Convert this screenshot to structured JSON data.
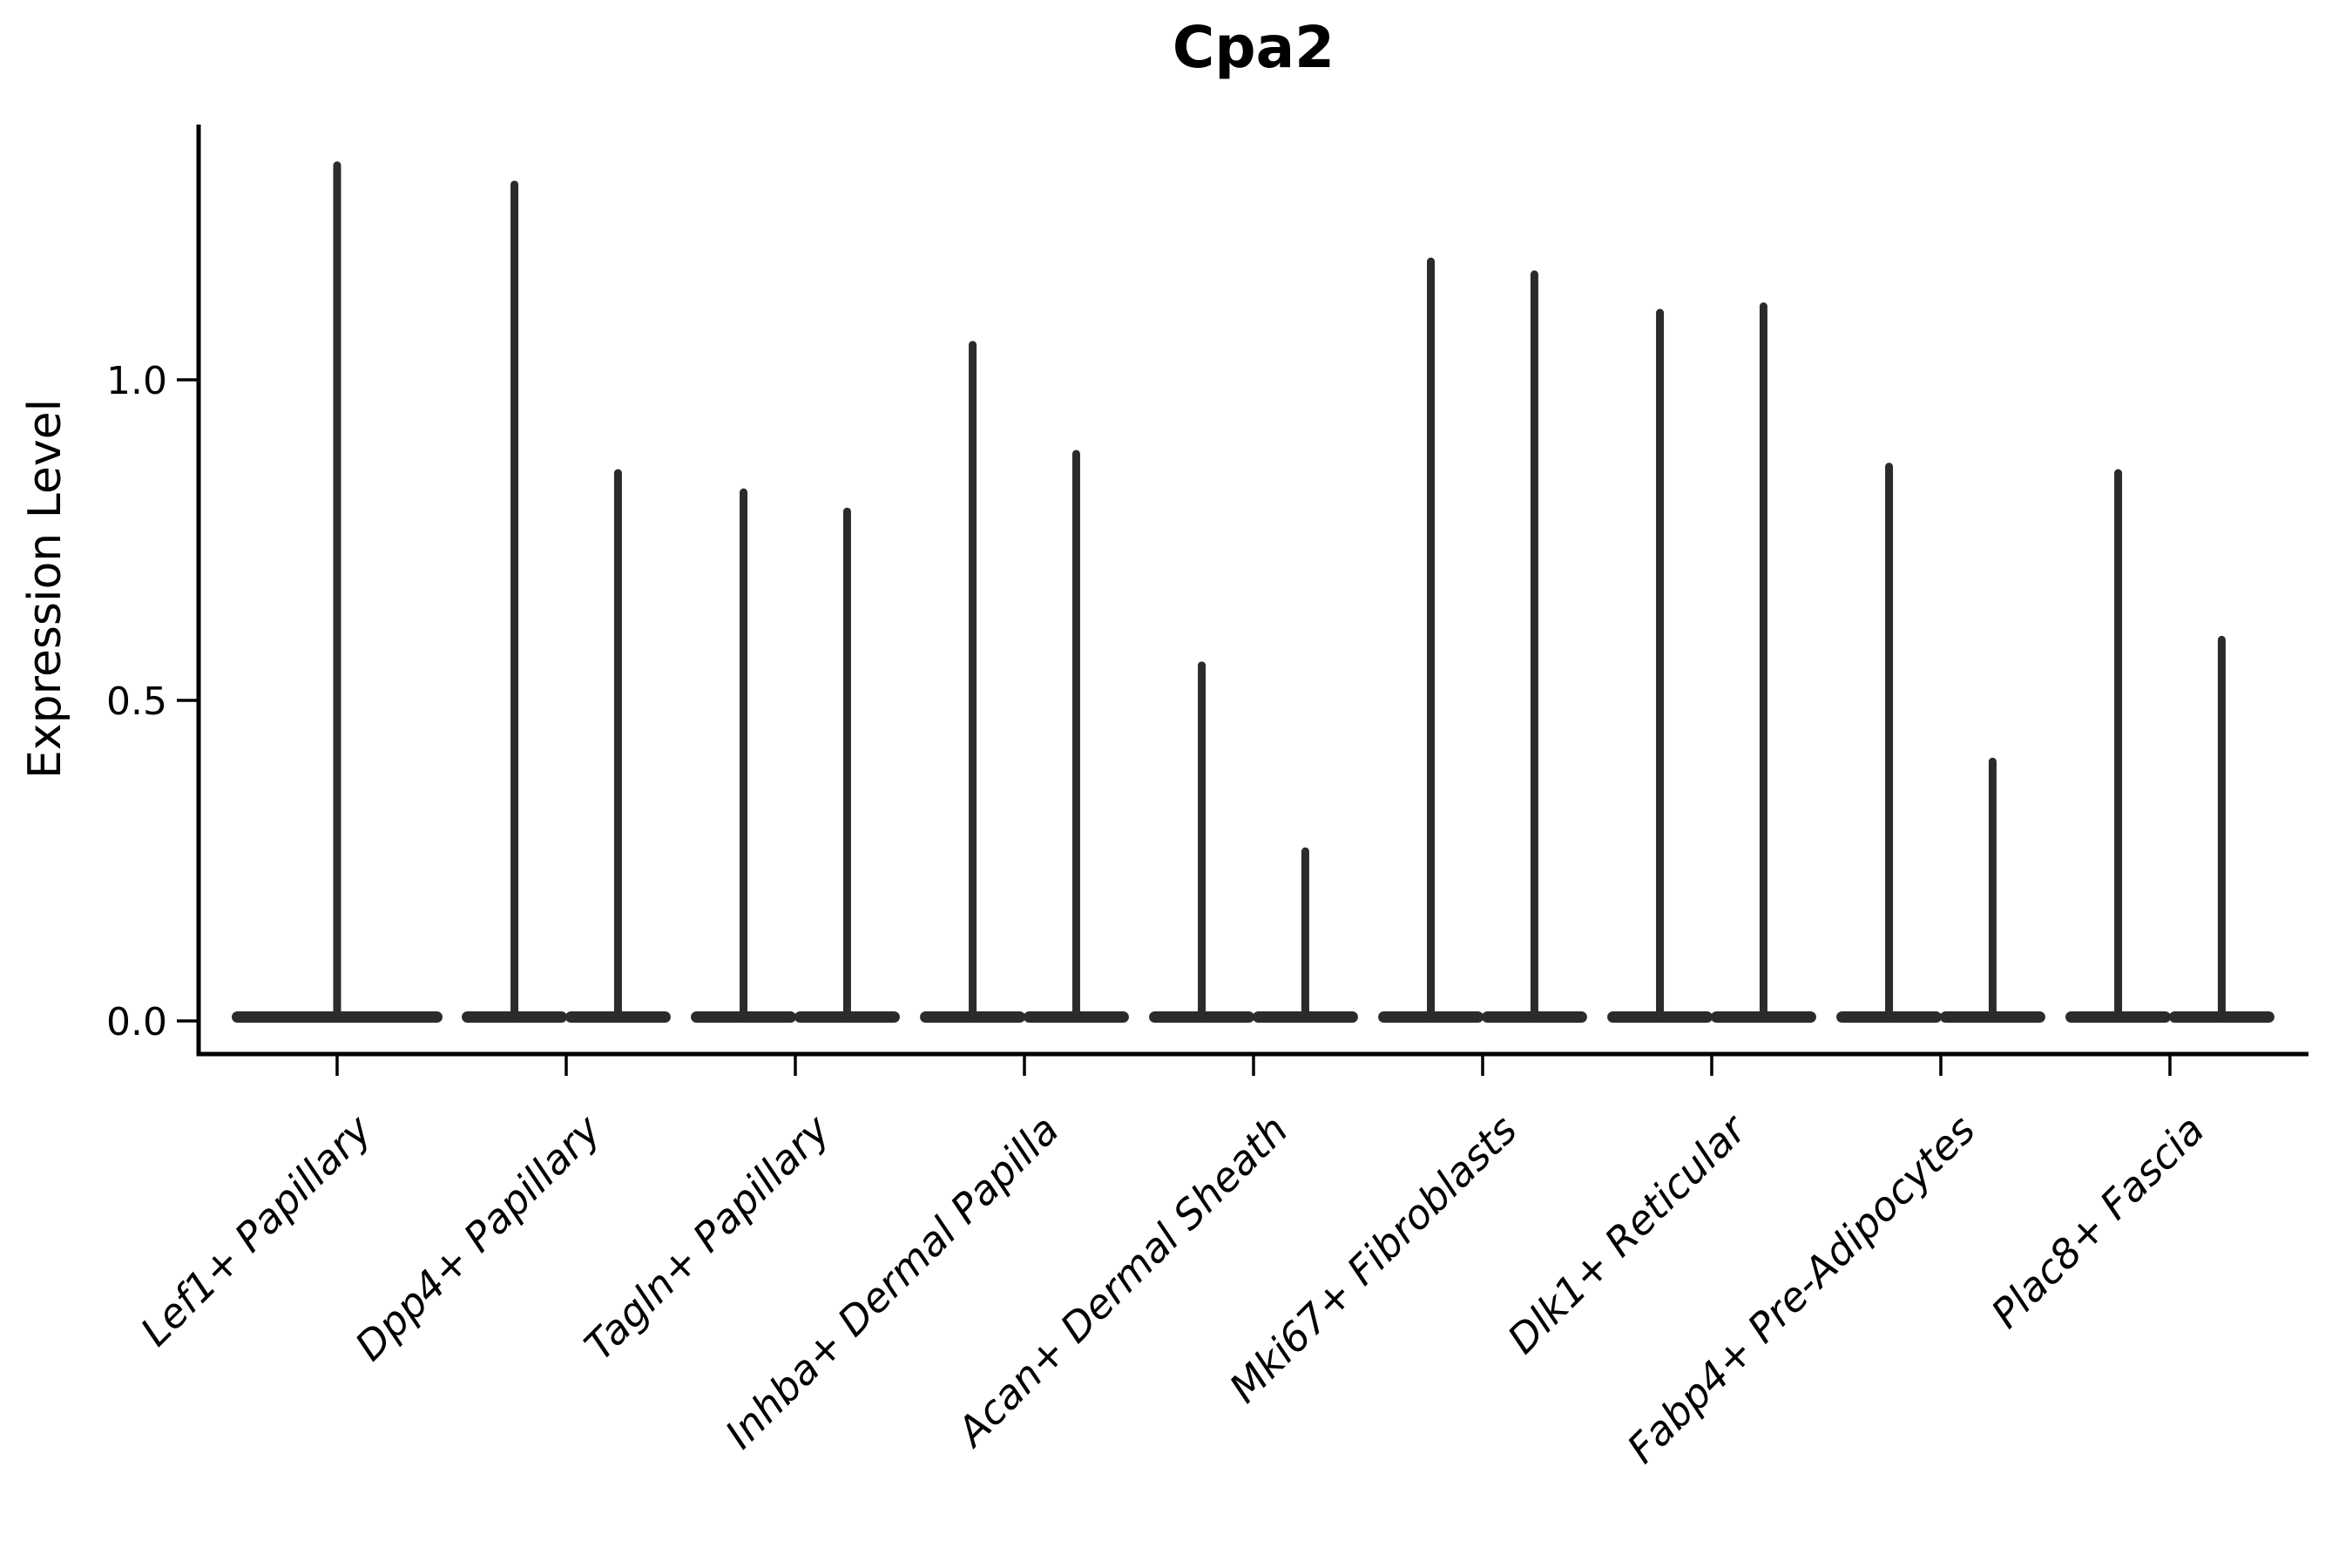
{
  "chart_data": {
    "type": "violin",
    "title": "Cpa2",
    "ylabel": "Expression Level",
    "xlabel": "",
    "ytick_labels": [
      "0.0",
      "0.5",
      "1.0"
    ],
    "ytick_values": [
      0.0,
      0.5,
      1.0
    ],
    "ylim": [
      -0.05,
      1.4
    ],
    "grid": false,
    "legend": "none",
    "background_color": "#ffffff",
    "violin_color": "#2b2b2b",
    "axis_color": "#000000",
    "xtick_label_style": "italic, rotated 45deg",
    "categories": [
      "Lef1+ Papillary",
      "Dpp4+ Papillary",
      "Tagln+ Papillary",
      "Inhba+ Dermal Papilla",
      "Acan+ Dermal Sheath",
      "Mki67+ Fibroblasts",
      "Dlk1+ Reticular",
      "Fabp4+ Pre-Adipocytes",
      "Plac8+ Fascia"
    ],
    "groups": [
      {
        "category": "Lef1+ Papillary",
        "violins": [
          {
            "offset": 0,
            "width": 0.92,
            "max": 1.34
          }
        ]
      },
      {
        "category": "Dpp4+ Papillary",
        "violins": [
          {
            "offset": -0.226,
            "width": 0.46,
            "max": 1.31
          },
          {
            "offset": 0.226,
            "width": 0.46,
            "max": 0.86
          }
        ]
      },
      {
        "category": "Tagln+ Papillary",
        "violins": [
          {
            "offset": -0.226,
            "width": 0.46,
            "max": 0.83
          },
          {
            "offset": 0.226,
            "width": 0.46,
            "max": 0.8
          }
        ]
      },
      {
        "category": "Inhba+ Dermal Papilla",
        "violins": [
          {
            "offset": -0.226,
            "width": 0.46,
            "max": 1.06
          },
          {
            "offset": 0.226,
            "width": 0.46,
            "max": 0.89
          }
        ]
      },
      {
        "category": "Acan+ Dermal Sheath",
        "violins": [
          {
            "offset": -0.226,
            "width": 0.46,
            "max": 0.56
          },
          {
            "offset": 0.226,
            "width": 0.46,
            "max": 0.27
          }
        ]
      },
      {
        "category": "Mki67+ Fibroblasts",
        "violins": [
          {
            "offset": -0.226,
            "width": 0.46,
            "max": 1.19
          },
          {
            "offset": 0.226,
            "width": 0.46,
            "max": 1.17
          }
        ]
      },
      {
        "category": "Dlk1+ Reticular",
        "violins": [
          {
            "offset": -0.226,
            "width": 0.46,
            "max": 1.11
          },
          {
            "offset": 0.226,
            "width": 0.46,
            "max": 1.12
          }
        ]
      },
      {
        "category": "Fabp4+ Pre-Adipocytes",
        "violins": [
          {
            "offset": -0.226,
            "width": 0.46,
            "max": 0.87
          },
          {
            "offset": 0.226,
            "width": 0.46,
            "max": 0.41
          }
        ]
      },
      {
        "category": "Plac8+ Fascia",
        "violins": [
          {
            "offset": -0.226,
            "width": 0.46,
            "max": 0.86
          },
          {
            "offset": 0.226,
            "width": 0.46,
            "max": 0.6
          }
        ]
      }
    ]
  }
}
